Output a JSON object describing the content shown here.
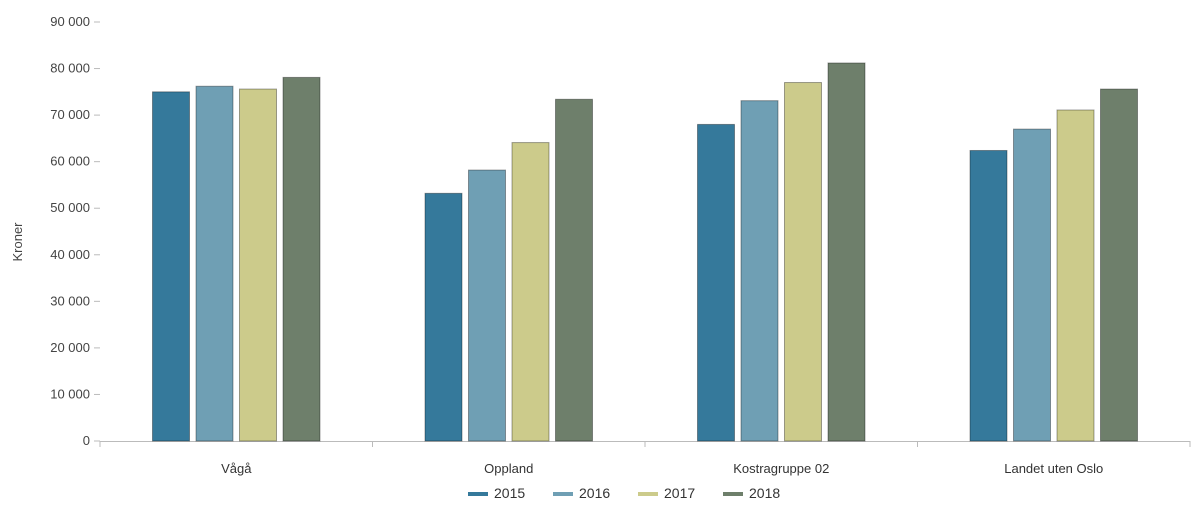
{
  "chart_data": {
    "type": "bar",
    "ylabel": "Kroner",
    "ylim": [
      0,
      90000
    ],
    "yticks": [
      "0",
      "10 000",
      "20 000",
      "30 000",
      "40 000",
      "50 000",
      "60 000",
      "70 000",
      "80 000",
      "90 000"
    ],
    "categories": [
      "Vågå",
      "Oppland",
      "Kostragruppe 02",
      "Landet uten Oslo"
    ],
    "series": [
      {
        "name": "2015",
        "color": "#35799b",
        "values": [
          75000,
          53200,
          68000,
          62400
        ]
      },
      {
        "name": "2016",
        "color": "#6f9fb4",
        "values": [
          76200,
          58200,
          73100,
          67000
        ]
      },
      {
        "name": "2017",
        "color": "#cccb8b",
        "values": [
          75600,
          64100,
          77000,
          71100
        ]
      },
      {
        "name": "2018",
        "color": "#6e7f6b",
        "values": [
          78100,
          73400,
          81200,
          75600
        ]
      }
    ],
    "legend_position": "bottom-center",
    "grid": false
  }
}
